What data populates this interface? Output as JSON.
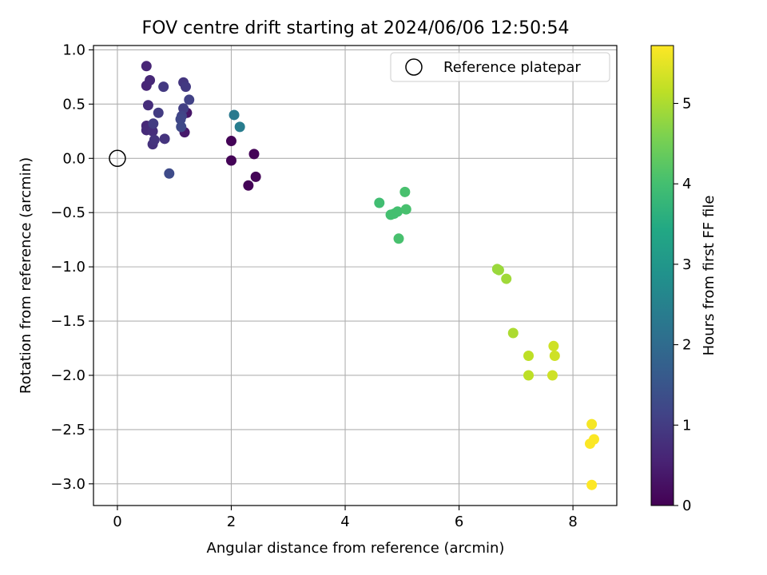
{
  "chart_data": {
    "type": "scatter",
    "title": "FOV centre drift starting at 2024/06/06 12:50:54",
    "xlabel": "Angular distance from reference (arcmin)",
    "ylabel": "Rotation from reference (arcmin)",
    "xlim": [
      -0.42,
      8.77
    ],
    "ylim": [
      -3.2,
      1.04
    ],
    "xticks": [
      0,
      2,
      4,
      6,
      8
    ],
    "yticks": [
      1.0,
      0.5,
      0.0,
      -0.5,
      -1.0,
      -1.5,
      -2.0,
      -2.5,
      -3.0
    ],
    "xtick_labels": [
      "0",
      "2",
      "4",
      "6",
      "8"
    ],
    "ytick_labels": [
      "1.0",
      "0.5",
      "0.0",
      "−0.5",
      "−1.0",
      "−1.5",
      "−2.0",
      "−2.5",
      "−3.0"
    ],
    "grid": true,
    "legend": {
      "location": "top-right",
      "entries": [
        "Reference platepar"
      ]
    },
    "reference_point": {
      "x": 0,
      "y": 0,
      "label": "Reference platepar"
    },
    "colorbar": {
      "label": "Hours from first FF file",
      "range": [
        0,
        5.72
      ],
      "ticks": [
        0,
        1,
        2,
        3,
        4,
        5
      ],
      "tick_labels": [
        "0",
        "1",
        "2",
        "3",
        "4",
        "5"
      ],
      "colormap": "viridis"
    },
    "points": [
      {
        "x": 2.0,
        "y": 0.16,
        "c": 0.05
      },
      {
        "x": 2.0,
        "y": -0.02,
        "c": 0.05
      },
      {
        "x": 2.4,
        "y": 0.04,
        "c": 0.05
      },
      {
        "x": 2.43,
        "y": -0.17,
        "c": 0.05
      },
      {
        "x": 2.3,
        "y": -0.25,
        "c": 0.05
      },
      {
        "x": 1.22,
        "y": 0.42,
        "c": 0.35
      },
      {
        "x": 1.18,
        "y": 0.24,
        "c": 0.4
      },
      {
        "x": 0.51,
        "y": 0.85,
        "c": 0.6
      },
      {
        "x": 0.51,
        "y": 0.67,
        "c": 0.6
      },
      {
        "x": 0.57,
        "y": 0.72,
        "c": 0.65
      },
      {
        "x": 0.51,
        "y": 0.3,
        "c": 0.65
      },
      {
        "x": 0.51,
        "y": 0.26,
        "c": 0.7
      },
      {
        "x": 0.54,
        "y": 0.49,
        "c": 0.75
      },
      {
        "x": 0.62,
        "y": 0.25,
        "c": 0.75
      },
      {
        "x": 0.62,
        "y": 0.13,
        "c": 0.8
      },
      {
        "x": 0.83,
        "y": 0.18,
        "c": 0.85
      },
      {
        "x": 0.65,
        "y": 0.17,
        "c": 0.85
      },
      {
        "x": 1.16,
        "y": 0.7,
        "c": 0.9
      },
      {
        "x": 1.2,
        "y": 0.66,
        "c": 0.95
      },
      {
        "x": 0.81,
        "y": 0.66,
        "c": 0.95
      },
      {
        "x": 0.72,
        "y": 0.42,
        "c": 1.0
      },
      {
        "x": 0.63,
        "y": 0.32,
        "c": 1.0
      },
      {
        "x": 1.16,
        "y": 0.46,
        "c": 1.05
      },
      {
        "x": 1.26,
        "y": 0.54,
        "c": 1.1
      },
      {
        "x": 1.13,
        "y": 0.39,
        "c": 1.15
      },
      {
        "x": 1.11,
        "y": 0.36,
        "c": 1.2
      },
      {
        "x": 1.12,
        "y": 0.29,
        "c": 1.25
      },
      {
        "x": 0.91,
        "y": -0.14,
        "c": 1.3
      },
      {
        "x": 2.05,
        "y": 0.4,
        "c": 2.3
      },
      {
        "x": 2.15,
        "y": 0.29,
        "c": 2.4
      },
      {
        "x": 4.6,
        "y": -0.41,
        "c": 3.95
      },
      {
        "x": 4.8,
        "y": -0.52,
        "c": 4.0
      },
      {
        "x": 4.86,
        "y": -0.51,
        "c": 4.0
      },
      {
        "x": 4.92,
        "y": -0.49,
        "c": 4.0
      },
      {
        "x": 5.05,
        "y": -0.31,
        "c": 4.05
      },
      {
        "x": 5.07,
        "y": -0.47,
        "c": 4.05
      },
      {
        "x": 4.94,
        "y": -0.74,
        "c": 4.05
      },
      {
        "x": 6.67,
        "y": -1.02,
        "c": 4.85
      },
      {
        "x": 6.7,
        "y": -1.03,
        "c": 4.85
      },
      {
        "x": 6.83,
        "y": -1.11,
        "c": 4.9
      },
      {
        "x": 6.95,
        "y": -1.61,
        "c": 5.0
      },
      {
        "x": 7.22,
        "y": -1.82,
        "c": 5.15
      },
      {
        "x": 7.22,
        "y": -2.0,
        "c": 5.15
      },
      {
        "x": 7.66,
        "y": -1.73,
        "c": 5.3
      },
      {
        "x": 7.68,
        "y": -1.82,
        "c": 5.3
      },
      {
        "x": 7.64,
        "y": -2.0,
        "c": 5.3
      },
      {
        "x": 8.33,
        "y": -2.45,
        "c": 5.65
      },
      {
        "x": 8.37,
        "y": -2.59,
        "c": 5.7
      },
      {
        "x": 8.3,
        "y": -2.63,
        "c": 5.7
      },
      {
        "x": 8.33,
        "y": -3.01,
        "c": 5.72
      }
    ]
  }
}
